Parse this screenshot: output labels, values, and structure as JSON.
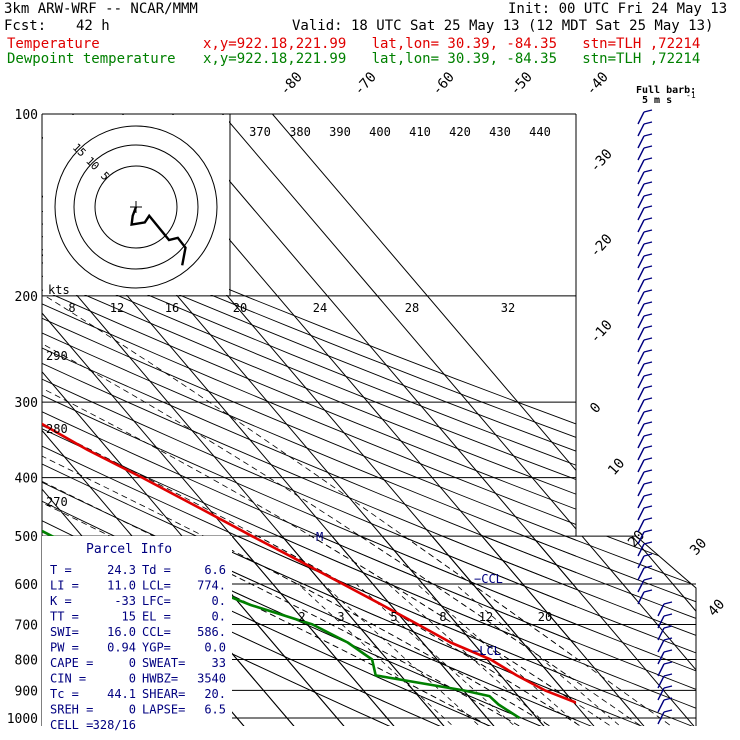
{
  "header": {
    "model": "3km ARW-WRF -- NCAR/MMM",
    "init": "Init: 00 UTC Fri 24 May 13",
    "fcst_label": "Fcst:",
    "fcst_value": "42 h",
    "valid": "Valid: 18 UTC Sat 25 May 13 (12 MDT Sat 25 May 13)",
    "temp_label": "Temperature",
    "temp_info": "x,y=922.18,221.99   lat,lon= 30.39, -84.35   stn=TLH ,72214",
    "dew_label": "Dewpoint temperature",
    "dew_info": "x,y=922.18,221.99   lat,lon= 30.39, -84.35   stn=TLH ,72214"
  },
  "colors": {
    "temperature": "#e00000",
    "dewpoint": "#008000",
    "parcel": "#000080",
    "barb": "#000080",
    "grid": "#000000"
  },
  "wind_key": {
    "title": "Full barb:",
    "value": "5 m s",
    "sup": "-1"
  },
  "hodograph": {
    "ring_labels": [
      "15",
      "10",
      "5"
    ],
    "unit": "kts",
    "points": [
      [
        0,
        0
      ],
      [
        -0.3,
        -0.8
      ],
      [
        -0.4,
        -1.6
      ],
      [
        0.8,
        -1.4
      ],
      [
        1.2,
        -0.8
      ],
      [
        3,
        -3
      ],
      [
        3.8,
        -2.8
      ],
      [
        4.5,
        -3.7
      ],
      [
        4.2,
        -5.3
      ]
    ]
  },
  "inset_scale": {
    "ticks": [
      "8",
      "12",
      "16",
      "20",
      "24",
      "28",
      "32"
    ],
    "upper_theta": [
      "370",
      "380",
      "390",
      "400",
      "410",
      "420",
      "430",
      "440"
    ],
    "left_theta": [
      "290",
      "280",
      "270"
    ]
  },
  "mixing_ratio_labels": [
    "2",
    "3",
    "5",
    "8",
    "12",
    "20"
  ],
  "parcel_info": {
    "title": "Parcel Info",
    "rows": [
      {
        "l": "T  =",
        "lv": "24.3",
        "r": "Td =",
        "rv": "6.6"
      },
      {
        "l": "LI =",
        "lv": "11.0",
        "r": "LCL=",
        "rv": "774."
      },
      {
        "l": "K  =",
        "lv": "-33",
        "r": "LFC=",
        "rv": "0."
      },
      {
        "l": "TT =",
        "lv": "15",
        "r": "EL =",
        "rv": "0."
      },
      {
        "l": "SWI=",
        "lv": "16.0",
        "r": "CCL=",
        "rv": "586."
      },
      {
        "l": "PW =",
        "lv": "0.94",
        "r": "YGP=",
        "rv": "0.0"
      },
      {
        "l": "CAPE =",
        "lv": "0",
        "r": "SWEAT=",
        "rv": "33"
      },
      {
        "l": "CIN  =",
        "lv": "0",
        "r": "HWBZ=",
        "rv": "3540"
      },
      {
        "l": "Tc   =",
        "lv": "44.1",
        "r": "SHEAR=",
        "rv": "20."
      },
      {
        "l": "SREH =",
        "lv": "0",
        "r": "LAPSE=",
        "rv": "6.5"
      },
      {
        "l": "CELL =",
        "lv": "328/16",
        "r": "",
        "rv": ""
      }
    ]
  },
  "level_labels": {
    "ccl": "CCL",
    "lcl": "LCL",
    "m": "M"
  },
  "chart_data": {
    "type": "line",
    "title": "",
    "xlabel": "",
    "ylabel": "",
    "y_scale": "log-pressure",
    "pressure_levels": [
      100,
      200,
      300,
      400,
      500,
      600,
      700,
      800,
      900,
      1000
    ],
    "isotherm_labels": [
      -80,
      -70,
      -60,
      -50,
      -40,
      -30,
      -20,
      -10,
      0,
      10,
      20,
      30,
      40
    ],
    "series": [
      {
        "name": "Temperature",
        "points": [
          [
            102,
            -70
          ],
          [
            110,
            -68.6
          ],
          [
            120,
            -68
          ],
          [
            140,
            -68
          ],
          [
            160,
            -67.1
          ],
          [
            180,
            -66.4
          ],
          [
            200,
            -62.6
          ],
          [
            230,
            -57.3
          ],
          [
            260,
            -51.1
          ],
          [
            290,
            -45.7
          ],
          [
            320,
            -39.8
          ],
          [
            360,
            -34.2
          ],
          [
            400,
            -28
          ],
          [
            450,
            -21.6
          ],
          [
            500,
            -16
          ],
          [
            550,
            -10.7
          ],
          [
            600,
            -6
          ],
          [
            650,
            -1.7
          ],
          [
            700,
            2.1
          ],
          [
            750,
            5.6
          ],
          [
            800,
            10.7
          ],
          [
            850,
            13.2
          ],
          [
            900,
            16.3
          ],
          [
            950,
            21.1
          ],
          [
            1000,
            23.8
          ]
        ]
      },
      {
        "name": "Dewpoint temperature",
        "points": [
          [
            102,
            -100
          ],
          [
            130,
            -107
          ],
          [
            170,
            -117
          ],
          [
            200,
            -117
          ],
          [
            240,
            -107
          ],
          [
            280,
            -98
          ],
          [
            310,
            -87
          ],
          [
            340,
            -84
          ],
          [
            370,
            -77
          ],
          [
            400,
            -71
          ],
          [
            450,
            -62
          ],
          [
            500,
            -56
          ],
          [
            550,
            -43
          ],
          [
            600,
            -35
          ],
          [
            650,
            -28
          ],
          [
            700,
            -19
          ],
          [
            750,
            -15
          ],
          [
            800,
            -13
          ],
          [
            850,
            -15
          ],
          [
            900,
            0
          ],
          [
            920,
            4.2
          ],
          [
            950,
            4.6
          ],
          [
            1000,
            6.5
          ]
        ]
      }
    ]
  }
}
